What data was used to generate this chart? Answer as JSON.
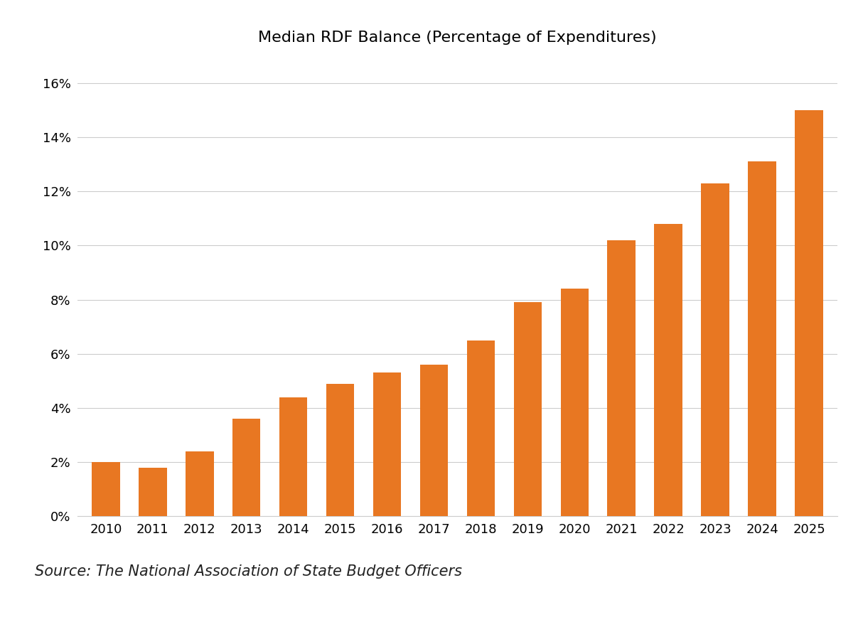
{
  "title": "Median RDF Balance (Percentage of Expenditures)",
  "categories": [
    "2010",
    "2011",
    "2012",
    "2013",
    "2014",
    "2015",
    "2016",
    "2017",
    "2018",
    "2019",
    "2020",
    "2021",
    "2022",
    "2023",
    "2024",
    "2025"
  ],
  "values": [
    0.02,
    0.018,
    0.024,
    0.036,
    0.044,
    0.049,
    0.053,
    0.056,
    0.065,
    0.079,
    0.084,
    0.102,
    0.108,
    0.123,
    0.131,
    0.15
  ],
  "bar_color": "#E87722",
  "ylim": [
    0,
    0.17
  ],
  "yticks": [
    0,
    0.02,
    0.04,
    0.06,
    0.08,
    0.1,
    0.12,
    0.14,
    0.16
  ],
  "source_text": "Source: The National Association of State Budget Officers",
  "background_color": "#ffffff",
  "grid_color": "#cccccc",
  "title_fontsize": 16,
  "tick_fontsize": 13,
  "source_fontsize": 15
}
